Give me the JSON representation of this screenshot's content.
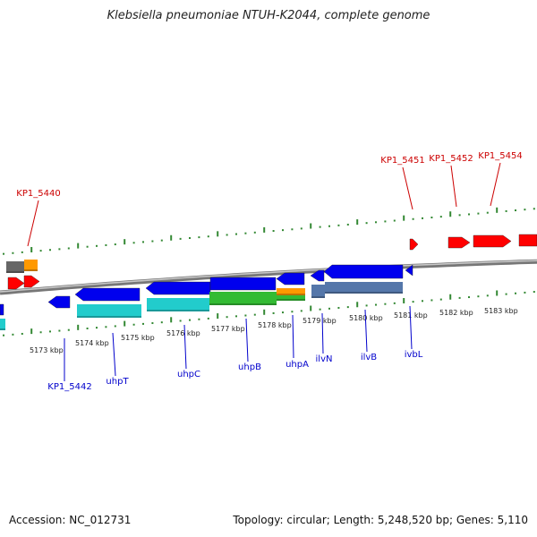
{
  "title": "Klebsiella pneumoniae NTUH-K2044, complete genome",
  "footer": {
    "accession": "Accession: NC_012731",
    "topology": "Topology: circular; Length: 5,248,520 bp; Genes: 5,110"
  },
  "colors": {
    "forward_gene": "#ff0000",
    "reverse_gene": "#0000ee",
    "cds_cyan": "#22cccc",
    "cds_green": "#33bb33",
    "cds_orange": "#ff9900",
    "cds_steel": "#5577aa",
    "cds_gray": "#666666",
    "tick": "#338833",
    "backbone": "#888888",
    "reverse_label": "#0000cc",
    "forward_label": "#cc0000"
  },
  "scale_labels": [
    "5173 kbp",
    "5174 kbp",
    "5175 kbp",
    "5176 kbp",
    "5177 kbp",
    "5178 kbp",
    "5179 kbp",
    "5180 kbp",
    "5181 kbp",
    "5182 kbp",
    "5183 kbp"
  ],
  "forward_gene_labels": [
    "KP1_5440",
    "KP1_5451",
    "KP1_5452",
    "KP1_5454"
  ],
  "reverse_gene_labels": [
    "KP1_5442",
    "uhpT",
    "uhpC",
    "uhpB",
    "uhpA",
    "ilvN",
    "ilvB",
    "ivbL"
  ]
}
